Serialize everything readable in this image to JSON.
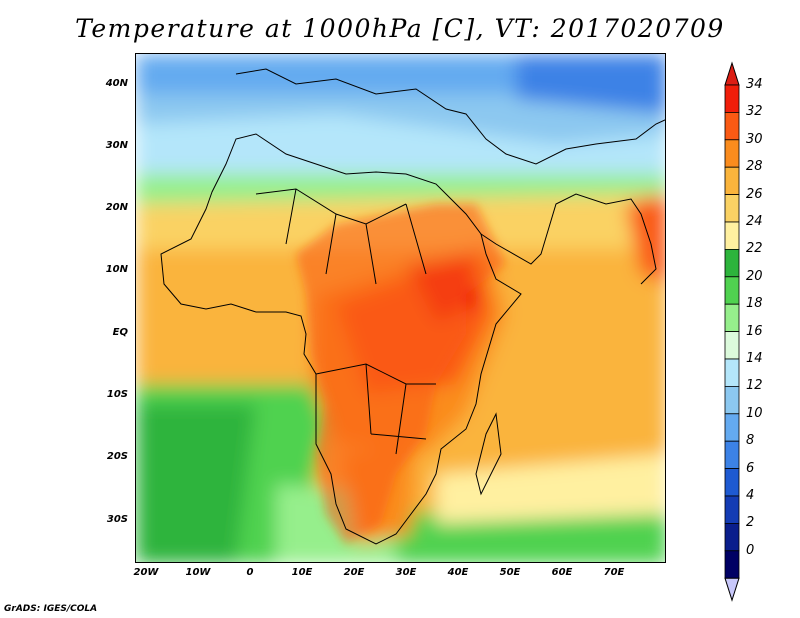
{
  "title": "Temperature at 1000hPa [C], VT: 2017020709",
  "credit": "GrADS: IGES/COLA",
  "lat_labels": [
    "40N",
    "30N",
    "20N",
    "10N",
    "EQ",
    "10S",
    "20S",
    "30S"
  ],
  "lon_labels": [
    "20W",
    "10W",
    "0",
    "10E",
    "20E",
    "30E",
    "40E",
    "50E",
    "60E",
    "70E"
  ],
  "map_extent": {
    "lon_min": -22,
    "lon_max": 80,
    "lat_min": -37,
    "lat_max": 45
  },
  "colorbar": {
    "labels": [
      "34",
      "32",
      "30",
      "28",
      "26",
      "24",
      "22",
      "20",
      "18",
      "16",
      "14",
      "12",
      "10",
      "8",
      "6",
      "4",
      "2",
      "0"
    ],
    "colors": [
      "#f01e0a",
      "#fa5a14",
      "#fa8c1e",
      "#fab43c",
      "#fad264",
      "#fff0a0",
      "#2db43c",
      "#50d250",
      "#96ef8c",
      "#dcfadc",
      "#b4e6fa",
      "#8cc8f0",
      "#64aaf0",
      "#3c82e6",
      "#1e5ad2",
      "#143cb4",
      "#0a1e8c",
      "#000064"
    ],
    "over_color": "#dc1e14",
    "under_color": "#c8c8fa"
  }
}
